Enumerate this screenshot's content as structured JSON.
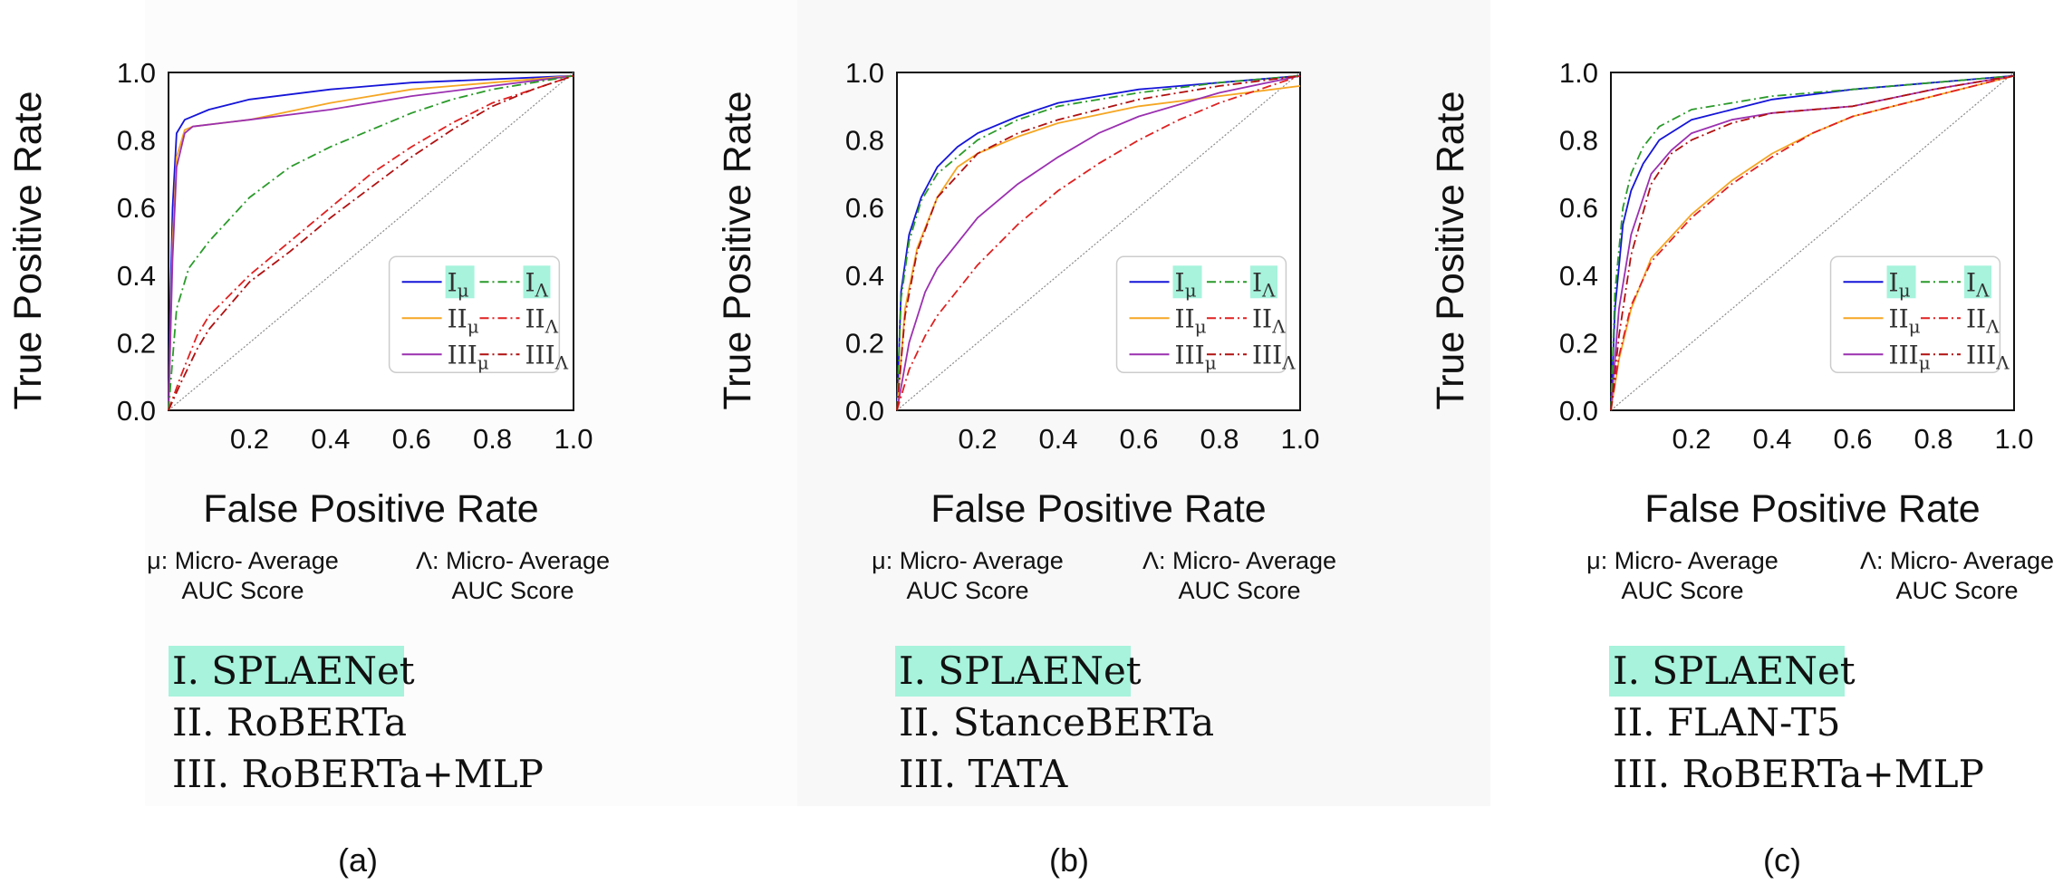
{
  "colors": {
    "I_micro": "#1515d8",
    "I_macro": "#2a9a2a",
    "II_micro": "#f5a623",
    "II_macro": "#e02020",
    "III_micro": "#9b30b0",
    "III_macro": "#b01010",
    "highlight": "#a7f3dc",
    "diagonal": "#8a8a8a"
  },
  "shared": {
    "ylabel": "True Positive Rate",
    "xlabel": "False Positive Rate",
    "micro_note_line1": "μ: Micro- Average",
    "micro_note_line2": "AUC Score",
    "macro_note_line1": "Λ: Micro- Average",
    "macro_note_line2": "AUC Score",
    "legend": {
      "I_base": "I",
      "II_base": "II",
      "III_base": "III",
      "micro_sub": "μ",
      "macro_sub": "Λ"
    }
  },
  "chart_data": [
    {
      "type": "line",
      "panel_label": "(a)",
      "xlabel": "False Positive Rate",
      "ylabel": "True Positive Rate",
      "xticks": [
        "0.2",
        "0.4",
        "0.6",
        "0.8",
        "1.0"
      ],
      "yticks": [
        "0.0",
        "0.2",
        "0.4",
        "0.6",
        "0.8",
        "1.0"
      ],
      "xlim": [
        0,
        1
      ],
      "ylim": [
        0,
        1
      ],
      "legend_position": "lower-right",
      "models": [
        "I. SPLAENet",
        "II. RoBERTa",
        "III. RoBERTa+MLP"
      ],
      "series": [
        {
          "name": "Iμ",
          "style": "solid",
          "color_key": "I_micro",
          "x": [
            0,
            0.005,
            0.01,
            0.02,
            0.04,
            0.1,
            0.2,
            0.4,
            0.6,
            0.8,
            1.0
          ],
          "y": [
            0,
            0.35,
            0.6,
            0.82,
            0.86,
            0.89,
            0.92,
            0.95,
            0.97,
            0.98,
            0.99
          ]
        },
        {
          "name": "IIμ",
          "style": "solid",
          "color_key": "II_micro",
          "x": [
            0,
            0.01,
            0.02,
            0.04,
            0.06,
            0.2,
            0.4,
            0.6,
            0.8,
            1.0
          ],
          "y": [
            0,
            0.5,
            0.75,
            0.83,
            0.84,
            0.86,
            0.91,
            0.95,
            0.97,
            0.99
          ]
        },
        {
          "name": "IIIμ",
          "style": "solid",
          "color_key": "III_micro",
          "x": [
            0,
            0.01,
            0.02,
            0.04,
            0.06,
            0.2,
            0.4,
            0.6,
            0.8,
            1.0
          ],
          "y": [
            0,
            0.45,
            0.72,
            0.82,
            0.84,
            0.86,
            0.89,
            0.93,
            0.96,
            0.99
          ]
        },
        {
          "name": "IΛ",
          "style": "dashdot",
          "color_key": "I_macro",
          "x": [
            0,
            0.02,
            0.05,
            0.1,
            0.2,
            0.3,
            0.4,
            0.5,
            0.6,
            0.7,
            0.8,
            0.9,
            1.0
          ],
          "y": [
            0,
            0.3,
            0.42,
            0.5,
            0.63,
            0.72,
            0.78,
            0.83,
            0.88,
            0.92,
            0.95,
            0.97,
            0.99
          ]
        },
        {
          "name": "IIΛ",
          "style": "dashdot",
          "color_key": "II_macro",
          "x": [
            0,
            0.03,
            0.07,
            0.1,
            0.2,
            0.3,
            0.4,
            0.5,
            0.6,
            0.7,
            0.8,
            0.9,
            1.0
          ],
          "y": [
            0,
            0.1,
            0.22,
            0.28,
            0.4,
            0.5,
            0.6,
            0.7,
            0.78,
            0.85,
            0.91,
            0.95,
            0.99
          ]
        },
        {
          "name": "IIIΛ",
          "style": "dashdot",
          "color_key": "III_macro",
          "x": [
            0,
            0.03,
            0.07,
            0.1,
            0.2,
            0.3,
            0.4,
            0.5,
            0.6,
            0.7,
            0.8,
            0.9,
            1.0
          ],
          "y": [
            0,
            0.08,
            0.18,
            0.24,
            0.38,
            0.47,
            0.57,
            0.66,
            0.75,
            0.83,
            0.9,
            0.95,
            0.99
          ]
        }
      ]
    },
    {
      "type": "line",
      "panel_label": "(b)",
      "xlabel": "False Positive Rate",
      "ylabel": "True Positive Rate",
      "xticks": [
        "0.2",
        "0.4",
        "0.6",
        "0.8",
        "1.0"
      ],
      "yticks": [
        "0.0",
        "0.2",
        "0.4",
        "0.6",
        "0.8",
        "1.0"
      ],
      "xlim": [
        0,
        1
      ],
      "ylim": [
        0,
        1
      ],
      "legend_position": "lower-right",
      "models": [
        "I. SPLAENet",
        "II. StanceBERTa",
        "III. TATA"
      ],
      "series": [
        {
          "name": "Iμ",
          "style": "solid",
          "color_key": "I_micro",
          "x": [
            0,
            0.01,
            0.03,
            0.06,
            0.1,
            0.15,
            0.2,
            0.3,
            0.4,
            0.5,
            0.6,
            0.8,
            1.0
          ],
          "y": [
            0,
            0.35,
            0.52,
            0.63,
            0.72,
            0.78,
            0.82,
            0.87,
            0.91,
            0.93,
            0.95,
            0.97,
            0.99
          ]
        },
        {
          "name": "IIμ",
          "style": "solid",
          "color_key": "II_micro",
          "x": [
            0,
            0.02,
            0.05,
            0.1,
            0.15,
            0.2,
            0.3,
            0.4,
            0.6,
            0.8,
            1.0
          ],
          "y": [
            0,
            0.3,
            0.48,
            0.63,
            0.72,
            0.76,
            0.81,
            0.85,
            0.9,
            0.93,
            0.96
          ]
        },
        {
          "name": "IIIμ",
          "style": "solid",
          "color_key": "III_micro",
          "x": [
            0,
            0.03,
            0.07,
            0.1,
            0.2,
            0.3,
            0.4,
            0.5,
            0.6,
            0.8,
            1.0
          ],
          "y": [
            0,
            0.2,
            0.35,
            0.42,
            0.57,
            0.67,
            0.75,
            0.82,
            0.87,
            0.94,
            0.99
          ]
        },
        {
          "name": "IΛ",
          "style": "dashdot",
          "color_key": "I_macro",
          "x": [
            0,
            0.01,
            0.03,
            0.06,
            0.1,
            0.2,
            0.3,
            0.4,
            0.6,
            0.8,
            1.0
          ],
          "y": [
            0,
            0.33,
            0.5,
            0.62,
            0.7,
            0.8,
            0.86,
            0.9,
            0.94,
            0.97,
            0.99
          ]
        },
        {
          "name": "IIΛ",
          "style": "dashdot",
          "color_key": "II_macro",
          "x": [
            0,
            0.03,
            0.07,
            0.1,
            0.2,
            0.3,
            0.4,
            0.5,
            0.6,
            0.7,
            0.8,
            0.9,
            1.0
          ],
          "y": [
            0,
            0.12,
            0.22,
            0.28,
            0.43,
            0.55,
            0.65,
            0.73,
            0.8,
            0.86,
            0.91,
            0.95,
            0.99
          ]
        },
        {
          "name": "IIIΛ",
          "style": "dashdot",
          "color_key": "III_macro",
          "x": [
            0,
            0.02,
            0.05,
            0.1,
            0.2,
            0.3,
            0.4,
            0.6,
            0.8,
            1.0
          ],
          "y": [
            0,
            0.28,
            0.47,
            0.63,
            0.76,
            0.82,
            0.86,
            0.92,
            0.96,
            0.99
          ]
        }
      ]
    },
    {
      "type": "line",
      "panel_label": "(c)",
      "xlabel": "False Positive Rate",
      "ylabel": "True Positive Rate",
      "xticks": [
        "0.2",
        "0.4",
        "0.6",
        "0.8",
        "1.0"
      ],
      "yticks": [
        "0.0",
        "0.2",
        "0.4",
        "0.6",
        "0.8",
        "1.0"
      ],
      "xlim": [
        0,
        1
      ],
      "ylim": [
        0,
        1
      ],
      "legend_position": "lower-right",
      "models": [
        "I. SPLAENet",
        "II. FLAN-T5",
        "III. RoBERTa+MLP"
      ],
      "series": [
        {
          "name": "Iμ",
          "style": "solid",
          "color_key": "I_micro",
          "x": [
            0,
            0.01,
            0.03,
            0.05,
            0.08,
            0.12,
            0.2,
            0.3,
            0.4,
            0.6,
            0.8,
            1.0
          ],
          "y": [
            0,
            0.3,
            0.55,
            0.65,
            0.73,
            0.8,
            0.86,
            0.89,
            0.92,
            0.95,
            0.97,
            0.99
          ]
        },
        {
          "name": "IIμ",
          "style": "solid",
          "color_key": "II_micro",
          "x": [
            0,
            0.02,
            0.05,
            0.1,
            0.2,
            0.3,
            0.4,
            0.5,
            0.6,
            0.8,
            1.0
          ],
          "y": [
            0,
            0.15,
            0.3,
            0.45,
            0.58,
            0.68,
            0.76,
            0.82,
            0.87,
            0.93,
            0.99
          ]
        },
        {
          "name": "IIIμ",
          "style": "solid",
          "color_key": "III_micro",
          "x": [
            0,
            0.02,
            0.05,
            0.1,
            0.15,
            0.2,
            0.3,
            0.4,
            0.6,
            0.8,
            1.0
          ],
          "y": [
            0,
            0.3,
            0.52,
            0.7,
            0.77,
            0.82,
            0.86,
            0.88,
            0.9,
            0.95,
            0.99
          ]
        },
        {
          "name": "IΛ",
          "style": "dashdot",
          "color_key": "I_macro",
          "x": [
            0,
            0.01,
            0.03,
            0.05,
            0.08,
            0.12,
            0.2,
            0.3,
            0.4,
            0.6,
            0.8,
            1.0
          ],
          "y": [
            0,
            0.35,
            0.6,
            0.7,
            0.78,
            0.84,
            0.89,
            0.91,
            0.93,
            0.95,
            0.97,
            0.99
          ]
        },
        {
          "name": "IIΛ",
          "style": "dashdot",
          "color_key": "II_macro",
          "x": [
            0,
            0.02,
            0.05,
            0.1,
            0.2,
            0.3,
            0.4,
            0.5,
            0.6,
            0.8,
            1.0
          ],
          "y": [
            0,
            0.16,
            0.31,
            0.44,
            0.57,
            0.67,
            0.75,
            0.82,
            0.87,
            0.93,
            0.99
          ]
        },
        {
          "name": "IIIΛ",
          "style": "dashdot",
          "color_key": "III_macro",
          "x": [
            0,
            0.02,
            0.05,
            0.1,
            0.15,
            0.2,
            0.3,
            0.4,
            0.6,
            0.8,
            1.0
          ],
          "y": [
            0,
            0.22,
            0.46,
            0.67,
            0.76,
            0.8,
            0.85,
            0.88,
            0.9,
            0.95,
            0.99
          ]
        }
      ]
    }
  ]
}
